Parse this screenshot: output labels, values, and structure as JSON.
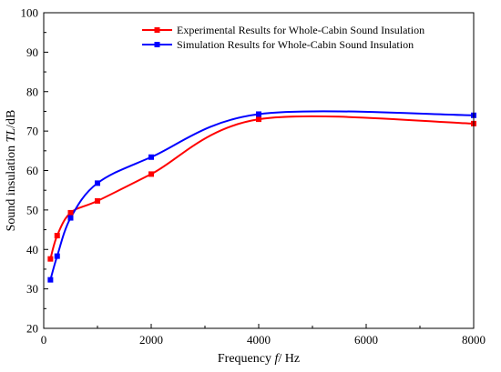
{
  "chart_data": {
    "type": "line",
    "xlabel": {
      "prefix": "Frequency ",
      "symbol": "f",
      "suffix": "/ Hz"
    },
    "ylabel": {
      "prefix": "Sound insulation ",
      "symbol": "TL",
      "suffix": "/dB"
    },
    "xlim": [
      0,
      8000
    ],
    "ylim": [
      20,
      100
    ],
    "xticks": [
      0,
      2000,
      4000,
      6000,
      8000
    ],
    "yticks": [
      20,
      30,
      40,
      50,
      60,
      70,
      80,
      90,
      100
    ],
    "grid": false,
    "legend_position": "top-right",
    "series": [
      {
        "name": "Experimental Results for Whole-Cabin Sound Insulation",
        "color": "#ff0000",
        "marker": "square",
        "x": [
          125,
          250,
          500,
          1000,
          2000,
          4000,
          8000
        ],
        "y": [
          37.6,
          43.5,
          49.3,
          52.3,
          59.1,
          73.0,
          71.9
        ]
      },
      {
        "name": "Simulation Results for Whole-Cabin Sound Insulation",
        "color": "#0000ff",
        "marker": "square",
        "x": [
          125,
          250,
          500,
          1000,
          2000,
          4000,
          8000
        ],
        "y": [
          32.3,
          38.3,
          48.0,
          56.8,
          63.4,
          74.3,
          74.0
        ]
      }
    ]
  }
}
